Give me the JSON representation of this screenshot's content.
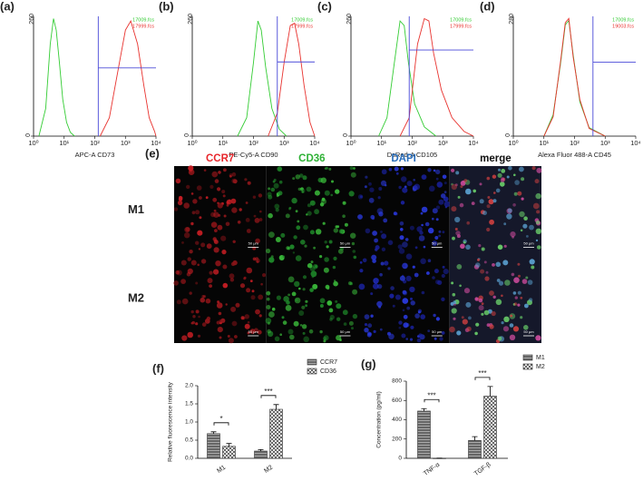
{
  "chart_data": [
    {
      "type": "line",
      "label": "(a)",
      "xlabel": "APC-A CD73",
      "xscale": "log",
      "xlim": [
        1,
        10000
      ],
      "xticks": [
        {
          "value": 1,
          "label": "10⁰"
        },
        {
          "value": 10,
          "label": "10¹"
        },
        {
          "value": 100,
          "label": "10²"
        },
        {
          "value": 1000,
          "label": "10³"
        },
        {
          "value": 10000,
          "label": "10⁴"
        }
      ],
      "ylim": [
        0,
        260
      ],
      "yticks": [
        0,
        260
      ],
      "legend": "top-right",
      "gate": {
        "x": 130,
        "y": 148
      },
      "series": [
        {
          "name": "17009.fcs",
          "color": "#33cc33",
          "x": [
            1.5,
            2.5,
            3.5,
            4.5,
            5.5,
            7,
            9,
            12,
            16,
            22
          ],
          "values": [
            0,
            60,
            200,
            255,
            230,
            160,
            80,
            30,
            8,
            0
          ]
        },
        {
          "name": "17999.fcs",
          "color": "#e8322e",
          "x": [
            150,
            300,
            600,
            1000,
            1500,
            2500,
            4000,
            6000,
            9000,
            10000
          ],
          "values": [
            0,
            40,
            150,
            230,
            250,
            200,
            110,
            40,
            10,
            0
          ]
        }
      ]
    },
    {
      "type": "line",
      "label": "(b)",
      "xlabel": "PE-Cy5-A CD90",
      "xscale": "log",
      "xlim": [
        1,
        10000
      ],
      "xticks": [
        {
          "value": 1,
          "label": "10⁰"
        },
        {
          "value": 10,
          "label": "10¹"
        },
        {
          "value": 100,
          "label": "10²"
        },
        {
          "value": 1000,
          "label": "10³"
        },
        {
          "value": 10000,
          "label": "10⁴"
        }
      ],
      "ylim": [
        0,
        260
      ],
      "yticks": [
        0,
        260
      ],
      "legend": "top-right",
      "gate": {
        "x": 600,
        "y": 161
      },
      "series": [
        {
          "name": "17009.fcs",
          "color": "#33cc33",
          "x": [
            30,
            60,
            100,
            140,
            180,
            250,
            400,
            700,
            1200
          ],
          "values": [
            0,
            40,
            160,
            250,
            230,
            150,
            60,
            15,
            0
          ]
        },
        {
          "name": "17999.fcs",
          "color": "#e8322e",
          "x": [
            300,
            600,
            1000,
            1600,
            2200,
            3000,
            4500,
            7000,
            10000
          ],
          "values": [
            0,
            50,
            160,
            240,
            245,
            200,
            110,
            30,
            0
          ]
        }
      ]
    },
    {
      "type": "line",
      "label": "(c)",
      "xlabel": "DsRed-A CD105",
      "xscale": "log",
      "xlim": [
        1,
        10000
      ],
      "xticks": [
        {
          "value": 1,
          "label": "10⁰"
        },
        {
          "value": 10,
          "label": "10¹"
        },
        {
          "value": 100,
          "label": "10²"
        },
        {
          "value": 1000,
          "label": "10³"
        },
        {
          "value": 10000,
          "label": "10⁴"
        }
      ],
      "ylim": [
        0,
        260
      ],
      "yticks": [
        0,
        260
      ],
      "legend": "top-right",
      "gate": {
        "x": 80,
        "y": 187
      },
      "series": [
        {
          "name": "17009.fcs",
          "color": "#33cc33",
          "x": [
            8,
            15,
            25,
            40,
            55,
            75,
            120,
            250,
            600
          ],
          "values": [
            0,
            40,
            150,
            250,
            240,
            160,
            70,
            20,
            0
          ]
        },
        {
          "name": "17999.fcs",
          "color": "#e8322e",
          "x": [
            40,
            80,
            150,
            250,
            350,
            500,
            900,
            2000,
            5000,
            10000
          ],
          "values": [
            0,
            40,
            200,
            255,
            250,
            180,
            100,
            40,
            10,
            0
          ]
        }
      ]
    },
    {
      "type": "line",
      "label": "(d)",
      "xlabel": "Alexa Fluor 488-A CD45",
      "xscale": "log",
      "xlim": [
        1,
        10000
      ],
      "xticks": [
        {
          "value": 1,
          "label": "10⁰"
        },
        {
          "value": 10,
          "label": "10¹"
        },
        {
          "value": 100,
          "label": "10²"
        },
        {
          "value": 1000,
          "label": "10³"
        },
        {
          "value": 10000,
          "label": "10⁴"
        }
      ],
      "ylim": [
        0,
        280
      ],
      "yticks": [
        0,
        280
      ],
      "legend": "top-right",
      "gate": {
        "x": 400,
        "y": 173
      },
      "series": [
        {
          "name": "17009.fcs",
          "color": "#33cc33",
          "x": [
            10,
            20,
            35,
            50,
            65,
            90,
            150,
            300,
            1000
          ],
          "values": [
            0,
            50,
            170,
            260,
            270,
            190,
            80,
            20,
            0
          ]
        },
        {
          "name": "19003.fcs",
          "color": "#e8322e",
          "x": [
            10,
            20,
            35,
            50,
            65,
            90,
            150,
            300,
            1000
          ],
          "values": [
            0,
            45,
            175,
            265,
            275,
            185,
            85,
            18,
            0
          ]
        }
      ]
    },
    {
      "type": "bar",
      "label": "(f)",
      "ylabel": "Relative fluorescence intensity",
      "categories": [
        "M1",
        "M2"
      ],
      "ylim": [
        0,
        2
      ],
      "yticks": [
        {
          "value": 0,
          "label": "0.0"
        },
        0.5,
        {
          "value": 1,
          "label": "1.0"
        },
        1.5,
        {
          "value": 2,
          "label": "2.0"
        }
      ],
      "legend": "top-right",
      "series": [
        {
          "name": "CCR7",
          "color": "#555555",
          "pattern": "lines",
          "values": [
            0.68,
            0.2
          ],
          "errors": [
            0.05,
            0.04
          ]
        },
        {
          "name": "CD36",
          "color": "#ffffff",
          "pattern": "cross",
          "values": [
            0.33,
            1.35
          ],
          "errors": [
            0.08,
            0.13
          ]
        }
      ],
      "annotations": [
        {
          "text": "*",
          "category": 0
        },
        {
          "text": "***",
          "category": 1
        }
      ]
    },
    {
      "type": "bar",
      "label": "(g)",
      "ylabel": "Concentration (pg/ml)",
      "categories": [
        "TNF-α",
        "TGF-β"
      ],
      "ylim": [
        0,
        800
      ],
      "yticks": [
        0,
        200,
        400,
        600,
        800
      ],
      "legend": "top-right",
      "series": [
        {
          "name": "M1",
          "color": "#555555",
          "pattern": "lines",
          "values": [
            490,
            185
          ],
          "errors": [
            25,
            40
          ]
        },
        {
          "name": "M2",
          "color": "#ffffff",
          "pattern": "cross",
          "values": [
            2,
            645
          ],
          "errors": [
            0,
            100
          ]
        }
      ],
      "annotations": [
        {
          "text": "***",
          "category": 0
        },
        {
          "text": "***",
          "category": 1
        }
      ]
    }
  ],
  "image_panel": {
    "label": "(e)",
    "columns": [
      "CCR7",
      "CD36",
      "DAPI",
      "merge"
    ],
    "rows": [
      "M1",
      "M2"
    ],
    "scale_bar": "50 μm"
  }
}
